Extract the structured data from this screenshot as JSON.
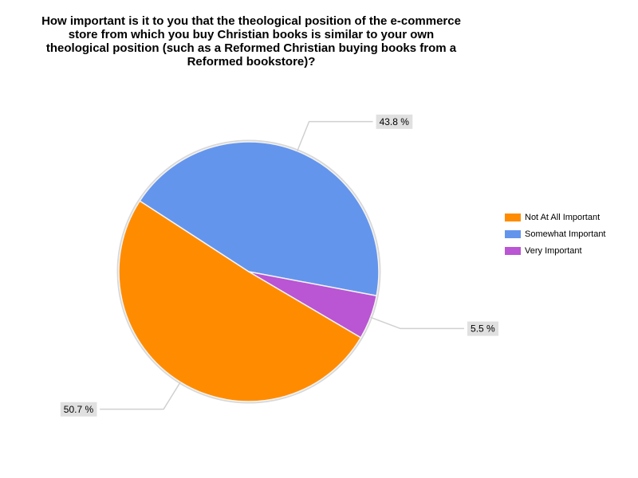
{
  "chart_data": {
    "type": "pie",
    "title": "How important is it to you that the theological position of the e-commerce store from which you buy Christian books is similar to your own theological position (such as a Reformed Christian buying books from a Reformed bookstore)?",
    "categories": [
      "Not At All Important",
      "Somewhat Important",
      "Very Important"
    ],
    "values": [
      50.7,
      43.8,
      5.5
    ],
    "value_labels": [
      "50.7 %",
      "43.8 %",
      "5.5 %"
    ],
    "colors": [
      "#ff8c00",
      "#6495ed",
      "#ba55d3"
    ],
    "legend": "right"
  }
}
